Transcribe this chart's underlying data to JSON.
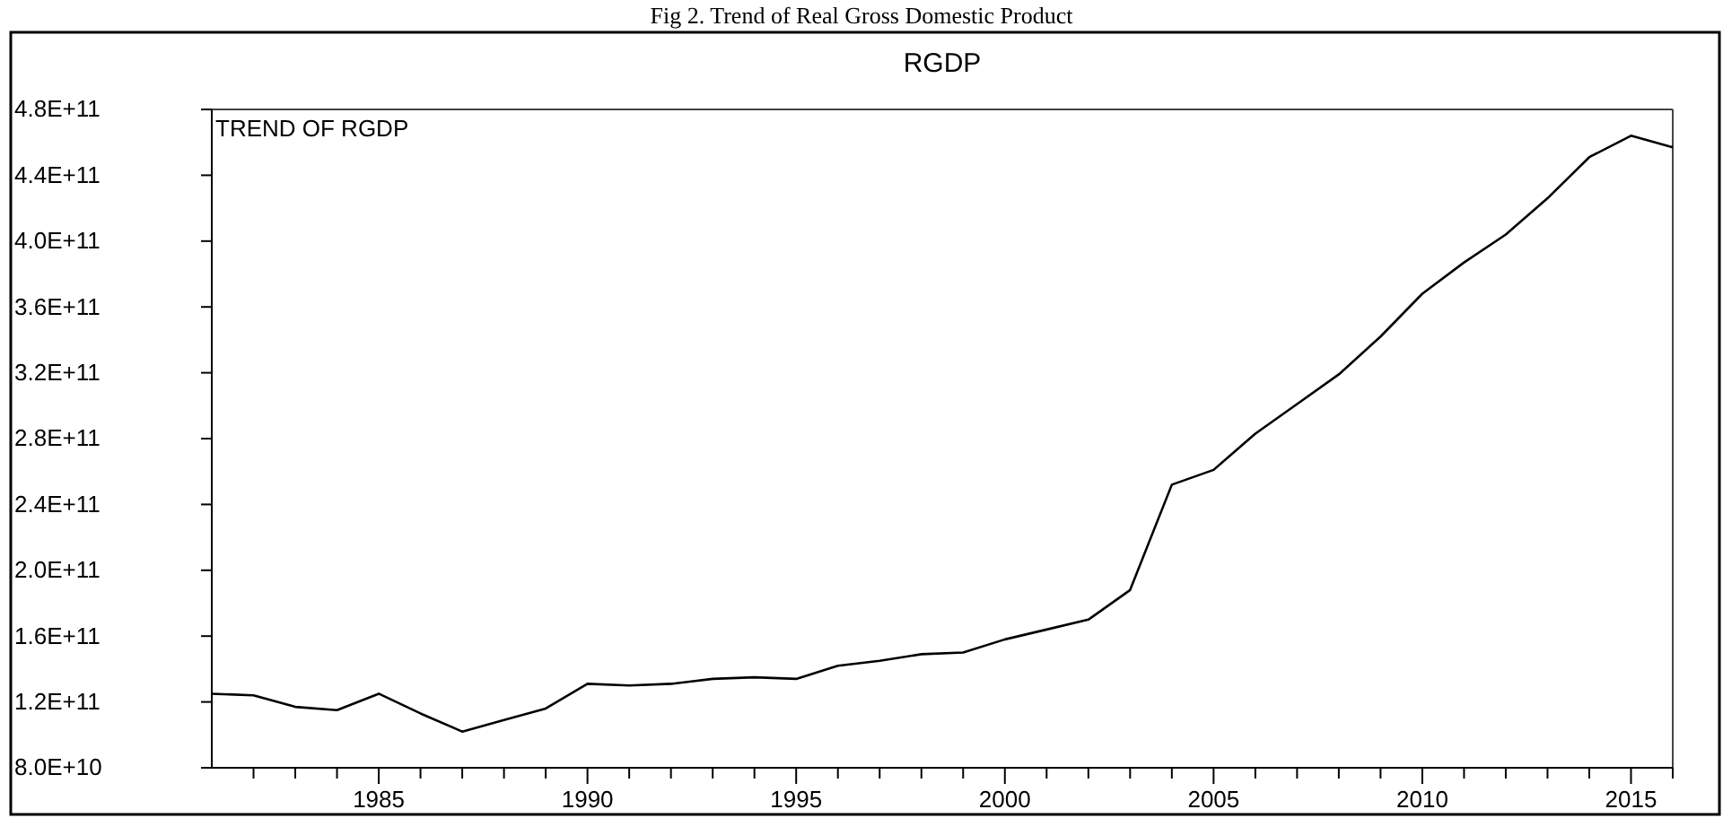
{
  "chart_data": {
    "type": "line",
    "title": "RGDP",
    "annotations": [
      "Fig 2. Trend of Real Gross Domestic Product",
      "TREND OF RGDP"
    ],
    "x": [
      1981,
      1982,
      1983,
      1984,
      1985,
      1986,
      1987,
      1988,
      1989,
      1990,
      1991,
      1992,
      1993,
      1994,
      1995,
      1996,
      1997,
      1998,
      1999,
      2000,
      2001,
      2002,
      2003,
      2004,
      2005,
      2006,
      2007,
      2008,
      2009,
      2010,
      2011,
      2012,
      2013,
      2014,
      2015,
      2016
    ],
    "series": [
      {
        "color": "#000000",
        "values": [
          125000000000.0,
          124000000000.0,
          117000000000.0,
          115000000000.0,
          125000000000.0,
          113000000000.0,
          102000000000.0,
          109000000000.0,
          116000000000.0,
          131000000000.0,
          130000000000.0,
          131000000000.0,
          134000000000.0,
          135000000000.0,
          134000000000.0,
          142000000000.0,
          145000000000.0,
          149000000000.0,
          150000000000.0,
          158000000000.0,
          164000000000.0,
          170000000000.0,
          188000000000.0,
          252000000000.0,
          261000000000.0,
          283000000000.0,
          301000000000.0,
          319000000000.0,
          342000000000.0,
          368000000000.0,
          387000000000.0,
          404000000000.0,
          426000000000.0,
          451000000000.0,
          464000000000.0,
          457000000000.0
        ]
      }
    ],
    "xlim": [
      1981,
      2016
    ],
    "xticks": [
      {
        "value": 1982,
        "label": null
      },
      {
        "value": 1983,
        "label": null
      },
      {
        "value": 1984,
        "label": null
      },
      1985,
      {
        "value": 1986,
        "label": null
      },
      {
        "value": 1987,
        "label": null
      },
      {
        "value": 1988,
        "label": null
      },
      {
        "value": 1989,
        "label": null
      },
      1990,
      {
        "value": 1991,
        "label": null
      },
      {
        "value": 1992,
        "label": null
      },
      {
        "value": 1993,
        "label": null
      },
      {
        "value": 1994,
        "label": null
      },
      1995,
      {
        "value": 1996,
        "label": null
      },
      {
        "value": 1997,
        "label": null
      },
      {
        "value": 1998,
        "label": null
      },
      {
        "value": 1999,
        "label": null
      },
      2000,
      {
        "value": 2001,
        "label": null
      },
      {
        "value": 2002,
        "label": null
      },
      {
        "value": 2003,
        "label": null
      },
      {
        "value": 2004,
        "label": null
      },
      2005,
      {
        "value": 2006,
        "label": null
      },
      {
        "value": 2007,
        "label": null
      },
      {
        "value": 2008,
        "label": null
      },
      {
        "value": 2009,
        "label": null
      },
      2010,
      {
        "value": 2011,
        "label": null
      },
      {
        "value": 2012,
        "label": null
      },
      {
        "value": 2013,
        "label": null
      },
      {
        "value": 2014,
        "label": null
      },
      2015,
      {
        "value": 2016,
        "label": null
      }
    ],
    "ylim": [
      80000000000.0,
      480000000000.0
    ],
    "yticks": [
      {
        "value": 80000000000.0,
        "label": "8.0E+10"
      },
      {
        "value": 120000000000.0,
        "label": "1.2E+11"
      },
      {
        "value": 160000000000.0,
        "label": "1.6E+11"
      },
      {
        "value": 200000000000.0,
        "label": "2.0E+11"
      },
      {
        "value": 240000000000.0,
        "label": "2.4E+11"
      },
      {
        "value": 280000000000.0,
        "label": "2.8E+11"
      },
      {
        "value": 320000000000.0,
        "label": "3.2E+11"
      },
      {
        "value": 360000000000.0,
        "label": "3.6E+11"
      },
      {
        "value": 400000000000.0,
        "label": "4.0E+11"
      },
      {
        "value": 440000000000.0,
        "label": "4.4E+11"
      },
      {
        "value": 480000000000.0,
        "label": "4.8E+11"
      }
    ],
    "grid": false,
    "marker": "none",
    "line_style": "solid"
  }
}
